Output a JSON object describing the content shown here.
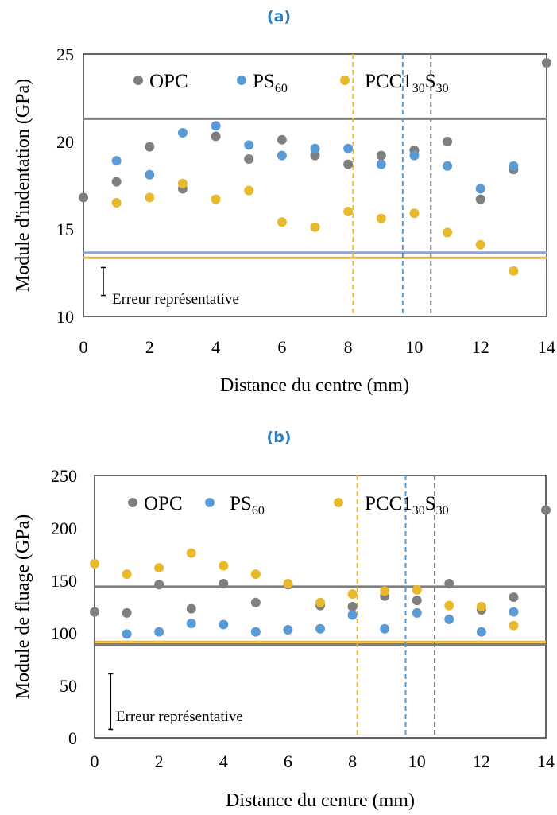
{
  "chart_data": [
    {
      "type": "scatter",
      "panel_label": "(a)",
      "xlabel": "Distance du centre (mm)",
      "ylabel": "Module d'indentation (GPa)",
      "xlim": [
        0,
        14
      ],
      "ylim": [
        10,
        25
      ],
      "xticks": [
        0,
        2,
        4,
        6,
        8,
        10,
        12,
        14
      ],
      "yticks": [
        10,
        15,
        20,
        25
      ],
      "grid": false,
      "legend_placement": "top",
      "series": [
        {
          "name": "OPC",
          "color": "#7f7f7f",
          "x": [
            0,
            1,
            2,
            3,
            4,
            5,
            6,
            7,
            8,
            9,
            10,
            11,
            12,
            13,
            14
          ],
          "y": [
            16.8,
            17.7,
            19.7,
            17.3,
            20.3,
            19.0,
            20.1,
            19.2,
            18.7,
            19.2,
            19.5,
            20.0,
            16.7,
            18.4,
            24.5
          ]
        },
        {
          "name": "PS60",
          "color": "#5b9bd5",
          "x": [
            1,
            2,
            3,
            4,
            5,
            6,
            7,
            8,
            9,
            10,
            11,
            12,
            13
          ],
          "y": [
            18.9,
            18.1,
            20.5,
            20.9,
            19.8,
            19.2,
            19.6,
            19.6,
            18.7,
            19.2,
            18.6,
            17.3,
            18.6
          ]
        },
        {
          "name": "PCC130S30",
          "color": "#e8b92d",
          "x": [
            1,
            2,
            3,
            4,
            5,
            6,
            7,
            8,
            9,
            10,
            11,
            12,
            13
          ],
          "y": [
            16.5,
            16.8,
            17.6,
            16.7,
            17.2,
            15.4,
            15.1,
            16.0,
            15.6,
            15.9,
            14.8,
            14.1,
            12.6
          ]
        }
      ],
      "horizontal_lines": [
        {
          "y": 21.3,
          "color": "#7f7f7f"
        },
        {
          "y": 13.65,
          "color": "#8fa3d6"
        },
        {
          "y": 13.35,
          "color": "#e8b92d"
        }
      ],
      "vertical_lines": [
        {
          "x": 8.15,
          "color": "#e8b92d"
        },
        {
          "x": 9.65,
          "color": "#5b9bd5"
        },
        {
          "x": 10.5,
          "color": "#7f7f7f"
        }
      ],
      "error_bar": {
        "label": "Erreur représentative",
        "x": 0.6,
        "y_low": 11.2,
        "y_high": 12.8
      }
    },
    {
      "type": "scatter",
      "panel_label": "(b)",
      "xlabel": "Distance du centre (mm)",
      "ylabel": "Module de fluage (GPa)",
      "xlim": [
        0,
        14
      ],
      "ylim": [
        0,
        250
      ],
      "xticks": [
        0,
        2,
        4,
        6,
        8,
        10,
        12,
        14
      ],
      "yticks": [
        0,
        50,
        100,
        150,
        200,
        250
      ],
      "grid": false,
      "legend_placement": "top",
      "series": [
        {
          "name": "OPC",
          "color": "#7f7f7f",
          "x": [
            0,
            1,
            2,
            3,
            4,
            5,
            6,
            7,
            8,
            9,
            10,
            11,
            12,
            13,
            14
          ],
          "y": [
            120,
            119,
            146,
            123,
            147,
            129,
            146,
            126,
            125,
            135,
            131,
            147,
            122,
            134,
            217
          ]
        },
        {
          "name": "PS60",
          "color": "#5b9bd5",
          "x": [
            1,
            2,
            3,
            4,
            5,
            6,
            7,
            8,
            9,
            10,
            11,
            12,
            13
          ],
          "y": [
            99,
            101,
            109,
            108,
            101,
            103,
            104,
            117,
            104,
            119,
            113,
            101,
            120
          ]
        },
        {
          "name": "PCC130S30",
          "color": "#e8b92d",
          "x": [
            0,
            1,
            2,
            3,
            4,
            5,
            6,
            7,
            8,
            9,
            10,
            11,
            12,
            13
          ],
          "y": [
            166,
            156,
            162,
            176,
            164,
            156,
            147,
            129,
            137,
            140,
            141,
            126,
            125,
            107
          ]
        }
      ],
      "horizontal_lines": [
        {
          "y": 144,
          "color": "#7f7f7f"
        },
        {
          "y": 91.5,
          "color": "#e8b92d"
        },
        {
          "y": 89,
          "color": "#7f7f7f"
        }
      ],
      "vertical_lines": [
        {
          "x": 8.15,
          "color": "#e8b92d"
        },
        {
          "x": 9.65,
          "color": "#5b9bd5"
        },
        {
          "x": 10.55,
          "color": "#7f7f7f"
        }
      ],
      "error_bar": {
        "label": "Erreur représentative",
        "x": 0.5,
        "y_low": 8,
        "y_high": 61
      }
    }
  ],
  "legend": {
    "opc": "OPC",
    "ps_main": "PS",
    "ps_sub": "60",
    "pcc_main": "PCC1",
    "pcc_sub1": "30",
    "pcc_s": "S",
    "pcc_sub2": "30"
  }
}
